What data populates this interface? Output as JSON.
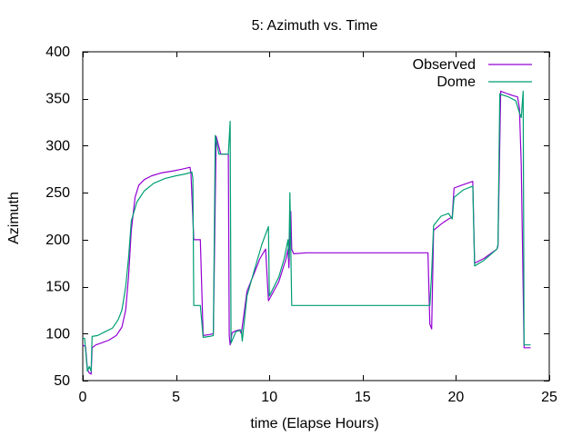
{
  "chart_data": {
    "type": "line",
    "title": "5: Azimuth vs. Time",
    "xlabel": "time (Elapse Hours)",
    "ylabel": "Azimuth",
    "xlim": [
      0,
      25
    ],
    "ylim": [
      50,
      400
    ],
    "xticks": [
      0,
      5,
      10,
      15,
      20,
      25
    ],
    "yticks": [
      50,
      100,
      150,
      200,
      250,
      300,
      350,
      400
    ],
    "grid": false,
    "legend_position": "top-right",
    "series": [
      {
        "name": "Observed",
        "color": "#9400d3",
        "points": [
          [
            0,
            88
          ],
          [
            0.15,
            86
          ],
          [
            0.25,
            62
          ],
          [
            0.35,
            58
          ],
          [
            0.45,
            57
          ],
          [
            0.5,
            85
          ],
          [
            0.7,
            88
          ],
          [
            1.0,
            90
          ],
          [
            1.4,
            93
          ],
          [
            1.8,
            98
          ],
          [
            2.1,
            107
          ],
          [
            2.3,
            125
          ],
          [
            2.45,
            160
          ],
          [
            2.6,
            210
          ],
          [
            2.8,
            245
          ],
          [
            3.0,
            258
          ],
          [
            3.3,
            264
          ],
          [
            3.7,
            268
          ],
          [
            4.2,
            271
          ],
          [
            4.8,
            273
          ],
          [
            5.3,
            275
          ],
          [
            5.75,
            277
          ],
          [
            5.8,
            270
          ],
          [
            5.95,
            200
          ],
          [
            6.3,
            200
          ],
          [
            6.45,
            98
          ],
          [
            6.8,
            99
          ],
          [
            7.0,
            100
          ],
          [
            7.15,
            310
          ],
          [
            7.4,
            291
          ],
          [
            7.8,
            291
          ],
          [
            7.85,
            98
          ],
          [
            7.9,
            88
          ],
          [
            8.0,
            101
          ],
          [
            8.2,
            103
          ],
          [
            8.4,
            104
          ],
          [
            8.5,
            100
          ],
          [
            8.8,
            145
          ],
          [
            9.2,
            165
          ],
          [
            9.5,
            180
          ],
          [
            9.8,
            190
          ],
          [
            9.95,
            135
          ],
          [
            10.5,
            155
          ],
          [
            10.9,
            180
          ],
          [
            11.0,
            190
          ],
          [
            11.05,
            170
          ],
          [
            11.15,
            230
          ],
          [
            11.2,
            190
          ],
          [
            11.3,
            185
          ],
          [
            12.0,
            186
          ],
          [
            18.5,
            186
          ],
          [
            18.6,
            110
          ],
          [
            18.7,
            105
          ],
          [
            18.8,
            210
          ],
          [
            19.3,
            218
          ],
          [
            19.6,
            222
          ],
          [
            19.8,
            224
          ],
          [
            19.9,
            255
          ],
          [
            20.3,
            258
          ],
          [
            20.9,
            262
          ],
          [
            21.0,
            175
          ],
          [
            21.5,
            180
          ],
          [
            22.2,
            190
          ],
          [
            22.25,
            193
          ],
          [
            22.4,
            358
          ],
          [
            22.8,
            355
          ],
          [
            23.1,
            353
          ],
          [
            23.3,
            352
          ],
          [
            23.4,
            340
          ],
          [
            23.5,
            280
          ],
          [
            23.65,
            85
          ],
          [
            24.0,
            85
          ]
        ]
      },
      {
        "name": "Dome",
        "color": "#009e73",
        "points": [
          [
            0,
            95
          ],
          [
            0.1,
            95
          ],
          [
            0.25,
            60
          ],
          [
            0.35,
            65
          ],
          [
            0.45,
            60
          ],
          [
            0.5,
            97
          ],
          [
            0.8,
            98
          ],
          [
            1.2,
            102
          ],
          [
            1.6,
            106
          ],
          [
            1.9,
            115
          ],
          [
            2.1,
            125
          ],
          [
            2.3,
            150
          ],
          [
            2.45,
            180
          ],
          [
            2.6,
            220
          ],
          [
            2.9,
            240
          ],
          [
            3.3,
            252
          ],
          [
            3.8,
            260
          ],
          [
            4.4,
            265
          ],
          [
            5.0,
            268
          ],
          [
            5.5,
            270
          ],
          [
            5.85,
            272
          ],
          [
            5.9,
            265
          ],
          [
            5.95,
            130
          ],
          [
            6.3,
            130
          ],
          [
            6.45,
            96
          ],
          [
            6.8,
            97
          ],
          [
            7.0,
            98
          ],
          [
            7.1,
            311
          ],
          [
            7.3,
            291
          ],
          [
            7.8,
            291
          ],
          [
            7.9,
            326
          ],
          [
            7.95,
            90
          ],
          [
            8.2,
            102
          ],
          [
            8.5,
            104
          ],
          [
            8.55,
            92
          ],
          [
            8.8,
            140
          ],
          [
            9.2,
            168
          ],
          [
            9.6,
            195
          ],
          [
            9.95,
            214
          ],
          [
            10.0,
            140
          ],
          [
            10.5,
            160
          ],
          [
            10.8,
            180
          ],
          [
            11.0,
            200
          ],
          [
            11.05,
            180
          ],
          [
            11.1,
            250
          ],
          [
            11.2,
            130
          ],
          [
            12.0,
            130
          ],
          [
            18.5,
            130
          ],
          [
            18.6,
            130
          ],
          [
            18.7,
            165
          ],
          [
            18.8,
            215
          ],
          [
            19.2,
            225
          ],
          [
            19.6,
            228
          ],
          [
            19.8,
            222
          ],
          [
            19.9,
            245
          ],
          [
            20.4,
            253
          ],
          [
            20.9,
            257
          ],
          [
            21.0,
            172
          ],
          [
            21.5,
            178
          ],
          [
            22.2,
            190
          ],
          [
            22.25,
            195
          ],
          [
            22.35,
            355
          ],
          [
            22.8,
            352
          ],
          [
            23.2,
            348
          ],
          [
            23.4,
            335
          ],
          [
            23.5,
            330
          ],
          [
            23.6,
            358
          ],
          [
            23.65,
            88
          ],
          [
            24.0,
            88
          ]
        ]
      }
    ]
  }
}
